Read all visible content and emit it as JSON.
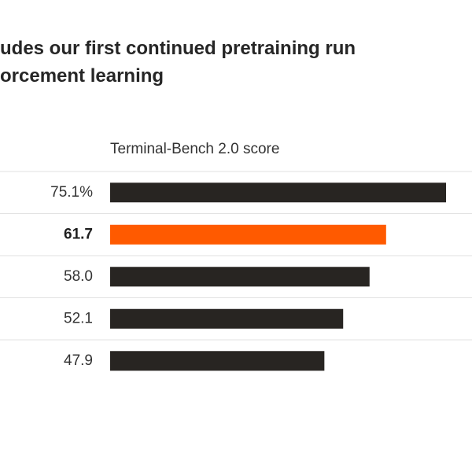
{
  "title_lines": [
    "udes our first continued pretraining run",
    "orcement learning"
  ],
  "chart_data": {
    "type": "bar",
    "orientation": "horizontal",
    "xlabel": "Terminal-Bench 2.0 score",
    "xlim": [
      0,
      70
    ],
    "values": [
      75.1,
      61.7,
      58.0,
      52.1,
      47.9
    ],
    "value_labels": [
      "75.1%",
      "61.7",
      "58.0",
      "52.1",
      "47.9"
    ],
    "highlight_index": 1,
    "grid": "horizontal row separators",
    "colors": {
      "default": "#282522",
      "highlight": "#ff5a00",
      "separator": "#e2e2e2"
    }
  }
}
